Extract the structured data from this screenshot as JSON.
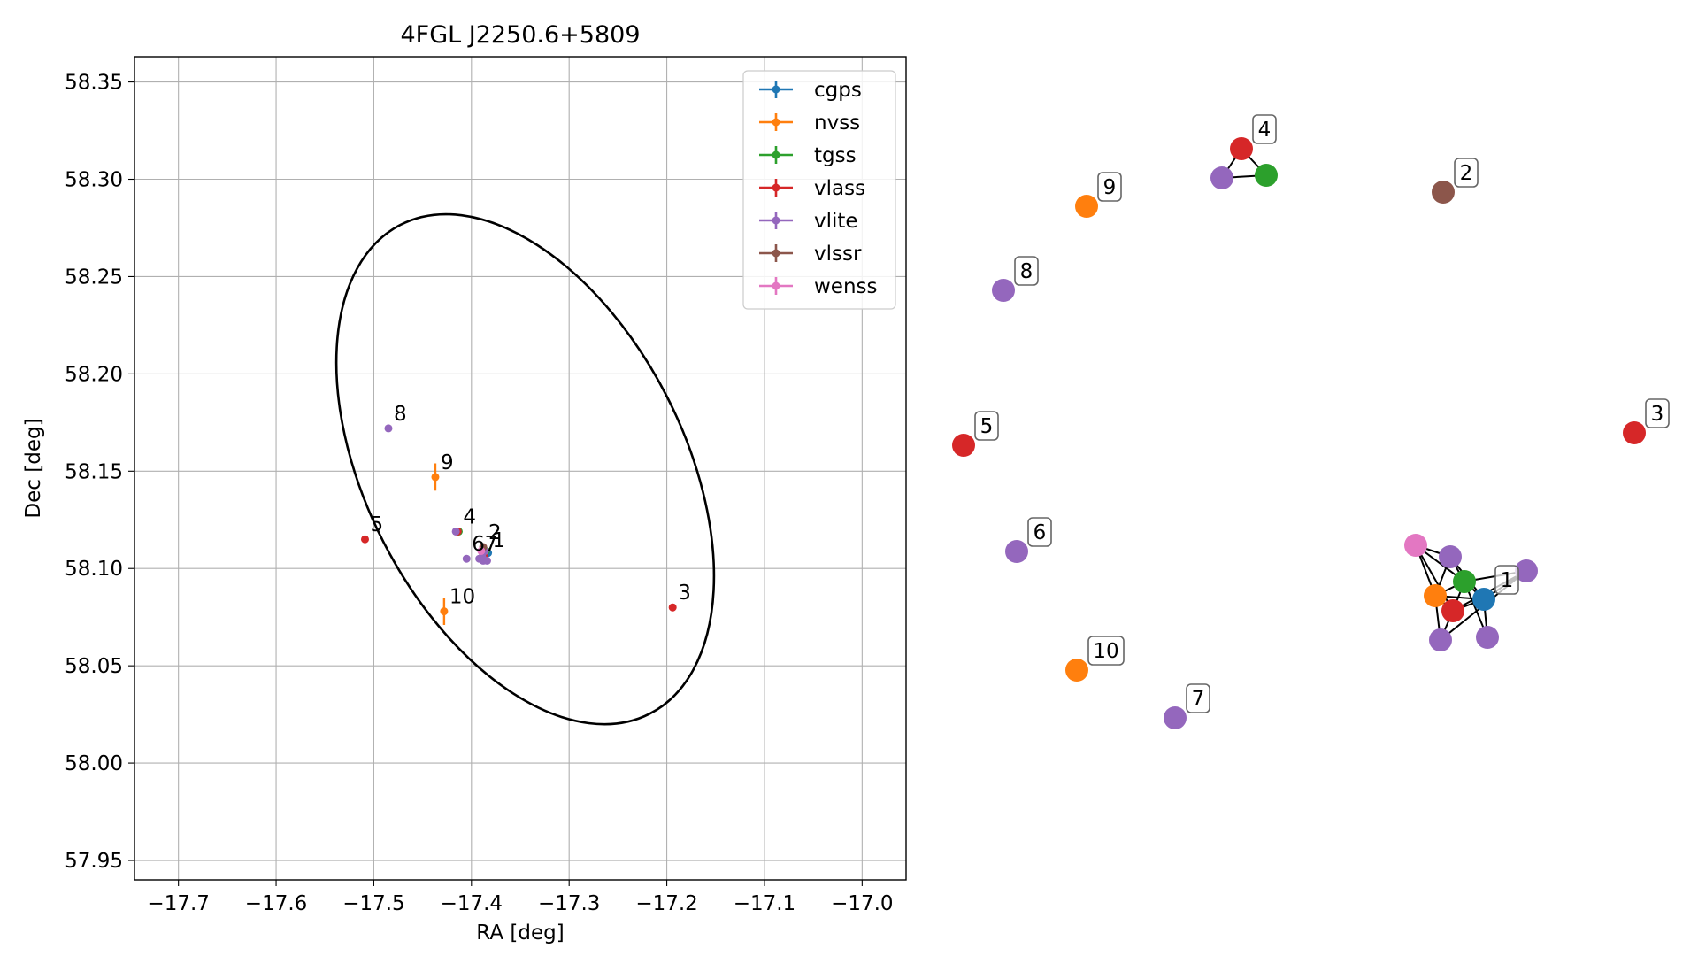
{
  "chart_data": [
    {
      "type": "scatter",
      "title": "4FGL J2250.6+5809",
      "xlabel": "RA [deg]",
      "ylabel": "Dec [deg]",
      "xlim": [
        -17.745,
        -16.955
      ],
      "ylim": [
        57.94,
        58.363
      ],
      "xticks": [
        -17.7,
        -17.6,
        -17.5,
        -17.4,
        -17.3,
        -17.2,
        -17.1,
        -17.0
      ],
      "xtick_labels": [
        "−17.7",
        "−17.6",
        "−17.5",
        "−17.4",
        "−17.3",
        "−17.2",
        "−17.1",
        "−17.0"
      ],
      "yticks": [
        57.95,
        58.0,
        58.05,
        58.1,
        58.15,
        58.2,
        58.25,
        58.3,
        58.35
      ],
      "ytick_labels": [
        "57.95",
        "58.00",
        "58.05",
        "58.10",
        "58.15",
        "58.20",
        "58.25",
        "58.30",
        "58.35"
      ],
      "grid": true,
      "legend_position": "top-right",
      "series": [
        {
          "name": "cgps",
          "color": "#1f77b4",
          "points": [
            {
              "x": -17.383,
              "y": 58.108
            }
          ]
        },
        {
          "name": "nvss",
          "color": "#ff7f0e",
          "points": [
            {
              "x": -17.388,
              "y": 58.107,
              "yerr": 0.004
            },
            {
              "x": -17.437,
              "y": 58.147,
              "yerr": 0.007
            },
            {
              "x": -17.428,
              "y": 58.078,
              "yerr": 0.007
            }
          ]
        },
        {
          "name": "tgss",
          "color": "#2ca02c",
          "points": [
            {
              "x": -17.385,
              "y": 58.109
            },
            {
              "x": -17.413,
              "y": 58.119
            }
          ]
        },
        {
          "name": "vlass",
          "color": "#d62728",
          "points": [
            {
              "x": -17.387,
              "y": 58.107
            },
            {
              "x": -17.414,
              "y": 58.119
            },
            {
              "x": -17.194,
              "y": 58.08
            },
            {
              "x": -17.509,
              "y": 58.115
            }
          ]
        },
        {
          "name": "vlite",
          "color": "#9467bd",
          "points": [
            {
              "x": -17.389,
              "y": 58.106
            },
            {
              "x": -17.416,
              "y": 58.119
            },
            {
              "x": -17.405,
              "y": 58.105
            },
            {
              "x": -17.392,
              "y": 58.105
            },
            {
              "x": -17.485,
              "y": 58.172
            },
            {
              "x": -17.386,
              "y": 58.109
            },
            {
              "x": -17.388,
              "y": 58.104
            },
            {
              "x": -17.384,
              "y": 58.104
            }
          ]
        },
        {
          "name": "vlssr",
          "color": "#8c564b",
          "points": [
            {
              "x": -17.388,
              "y": 58.111
            }
          ]
        },
        {
          "name": "wenss",
          "color": "#e377c2",
          "points": [
            {
              "x": -17.39,
              "y": 58.109
            }
          ]
        }
      ],
      "annotations": [
        {
          "text": "1",
          "x": -17.384,
          "y": 58.107
        },
        {
          "text": "2",
          "x": -17.388,
          "y": 58.111
        },
        {
          "text": "3",
          "x": -17.194,
          "y": 58.08
        },
        {
          "text": "4",
          "x": -17.414,
          "y": 58.119
        },
        {
          "text": "5",
          "x": -17.509,
          "y": 58.115
        },
        {
          "text": "6",
          "x": -17.405,
          "y": 58.105
        },
        {
          "text": "7",
          "x": -17.392,
          "y": 58.105
        },
        {
          "text": "8",
          "x": -17.485,
          "y": 58.172
        },
        {
          "text": "9",
          "x": -17.437,
          "y": 58.147
        },
        {
          "text": "10",
          "x": -17.428,
          "y": 58.078
        }
      ],
      "ellipse": {
        "center_x": -17.345,
        "center_y": 58.151,
        "color": "#000000"
      }
    },
    {
      "type": "scatter",
      "axes": false,
      "note_type": "network graph of matched sources",
      "nodes": [
        {
          "id": "n1",
          "color": "#1f77b4",
          "label": "1"
        },
        {
          "id": "n2",
          "color": "#2ca02c"
        },
        {
          "id": "n3",
          "color": "#ff7f0e"
        },
        {
          "id": "n4",
          "color": "#d62728"
        },
        {
          "id": "n5",
          "color": "#9467bd"
        },
        {
          "id": "n6",
          "color": "#9467bd"
        },
        {
          "id": "n7",
          "color": "#9467bd"
        },
        {
          "id": "n8",
          "color": "#9467bd"
        },
        {
          "id": "n9",
          "color": "#e377c2"
        },
        {
          "id": "g2",
          "color": "#8c564b",
          "label": "2"
        },
        {
          "id": "g3",
          "color": "#d62728",
          "label": "3"
        },
        {
          "id": "g4r",
          "color": "#d62728",
          "label": "4"
        },
        {
          "id": "g4g",
          "color": "#2ca02c"
        },
        {
          "id": "g4p",
          "color": "#9467bd"
        },
        {
          "id": "g5",
          "color": "#d62728",
          "label": "5"
        },
        {
          "id": "g6",
          "color": "#9467bd",
          "label": "6"
        },
        {
          "id": "g7",
          "color": "#9467bd",
          "label": "7"
        },
        {
          "id": "g8",
          "color": "#9467bd",
          "label": "8"
        },
        {
          "id": "g9",
          "color": "#ff7f0e",
          "label": "9"
        },
        {
          "id": "g10",
          "color": "#ff7f0e",
          "label": "10"
        }
      ],
      "edges": [
        [
          "g4r",
          "g4g"
        ],
        [
          "g4r",
          "g4p"
        ],
        [
          "g4p",
          "g4g"
        ],
        [
          "n9",
          "n5"
        ],
        [
          "n9",
          "n3"
        ],
        [
          "n9",
          "n2"
        ],
        [
          "n9",
          "n4"
        ],
        [
          "n5",
          "n2"
        ],
        [
          "n5",
          "n1"
        ],
        [
          "n5",
          "n3"
        ],
        [
          "n3",
          "n2"
        ],
        [
          "n3",
          "n4"
        ],
        [
          "n3",
          "n1"
        ],
        [
          "n3",
          "n7"
        ],
        [
          "n2",
          "n4"
        ],
        [
          "n2",
          "n1"
        ],
        [
          "n4",
          "n1"
        ],
        [
          "n1",
          "n8"
        ],
        [
          "n1",
          "n6"
        ],
        [
          "n2",
          "n8"
        ],
        [
          "n2",
          "n6"
        ],
        [
          "n4",
          "n7"
        ],
        [
          "n4",
          "n6"
        ],
        [
          "n7",
          "n6"
        ]
      ]
    }
  ]
}
